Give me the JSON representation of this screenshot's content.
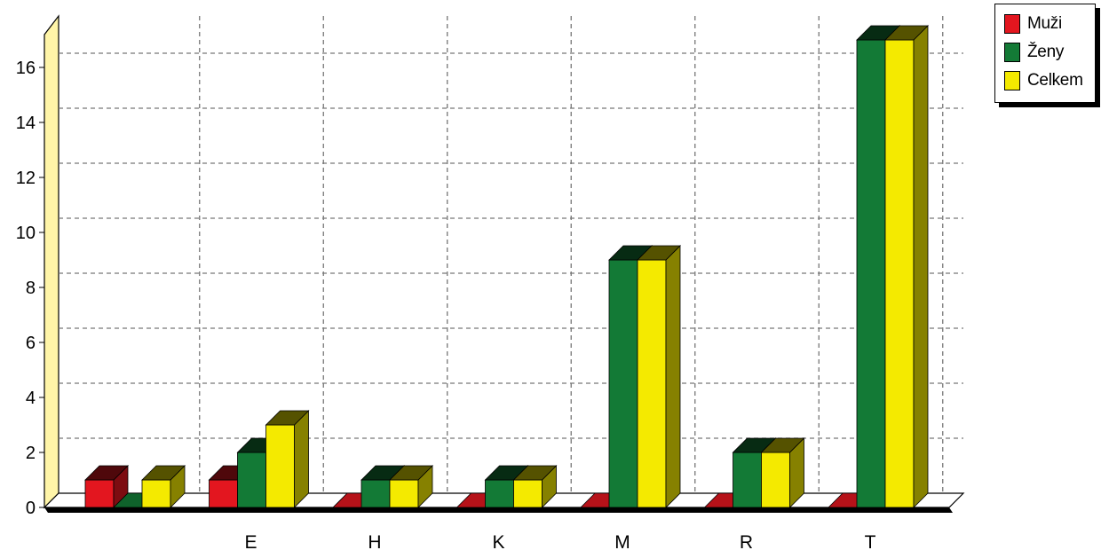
{
  "chart_data": {
    "type": "bar",
    "categories": [
      "",
      "E",
      "H",
      "K",
      "M",
      "R",
      "T"
    ],
    "series": [
      {
        "name": "Muži",
        "values": [
          1,
          1,
          0,
          0,
          0,
          0,
          0
        ],
        "color": "#e3161f"
      },
      {
        "name": "Ženy",
        "values": [
          0,
          2,
          1,
          1,
          9,
          2,
          17
        ],
        "color": "#137a36"
      },
      {
        "name": "Celkem",
        "values": [
          1,
          3,
          1,
          1,
          9,
          2,
          17
        ],
        "color": "#f4ea00"
      }
    ],
    "y_ticks": [
      "0",
      "2",
      "4",
      "6",
      "8",
      "10",
      "12",
      "14",
      "16"
    ],
    "ylim": [
      0,
      17
    ],
    "grid": true,
    "legend_position": "top-right",
    "style": "3d"
  }
}
